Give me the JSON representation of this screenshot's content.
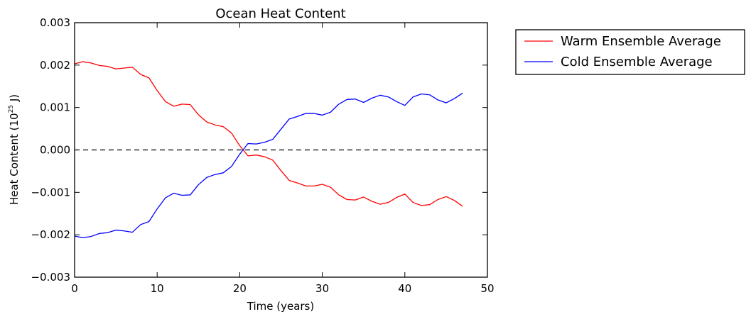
{
  "chart_data": {
    "type": "line",
    "title": "Ocean Heat Content",
    "xlabel": "Time (years)",
    "ylabel": "Heat Content (10",
    "ylabel_sup": "25",
    "ylabel_suffix": " J)",
    "xlim": [
      0,
      50
    ],
    "ylim": [
      -0.003,
      0.003
    ],
    "x_ticks": [
      0,
      10,
      20,
      30,
      40,
      50
    ],
    "x_tick_labels": [
      "0",
      "10",
      "20",
      "30",
      "40",
      "50"
    ],
    "y_ticks": [
      -0.003,
      -0.002,
      -0.001,
      0.0,
      0.001,
      0.002,
      0.003
    ],
    "y_tick_labels": [
      "−0.003",
      "−0.002",
      "−0.001",
      "0.000",
      "0.001",
      "0.002",
      "0.003"
    ],
    "grid": false,
    "legend_position": "outside-top-right",
    "reference_line": {
      "y": 0,
      "style": "dashed",
      "color": "#000000"
    },
    "x": [
      0,
      1,
      2,
      3,
      4,
      5,
      6,
      7,
      8,
      9,
      10,
      11,
      12,
      13,
      14,
      15,
      16,
      17,
      18,
      19,
      20,
      21,
      22,
      23,
      24,
      25,
      26,
      27,
      28,
      29,
      30,
      31,
      32,
      33,
      34,
      35,
      36,
      37,
      38,
      39,
      40,
      41,
      42,
      43,
      44,
      45,
      46,
      47
    ],
    "series": [
      {
        "name": "Warm Ensemble Average",
        "color": "#ff0000",
        "values": [
          0.00203,
          0.00208,
          0.00205,
          0.00199,
          0.00197,
          0.00191,
          0.00193,
          0.00195,
          0.00178,
          0.0017,
          0.0014,
          0.00114,
          0.00103,
          0.00108,
          0.00107,
          0.00083,
          0.00066,
          0.00059,
          0.00055,
          0.0004,
          0.0001,
          -0.00014,
          -0.00012,
          -0.00016,
          -0.00024,
          -0.00049,
          -0.00072,
          -0.00078,
          -0.00085,
          -0.00085,
          -0.00081,
          -0.00088,
          -0.00106,
          -0.00117,
          -0.00118,
          -0.00111,
          -0.00121,
          -0.00128,
          -0.00124,
          -0.00112,
          -0.00104,
          -0.00124,
          -0.00131,
          -0.00129,
          -0.00117,
          -0.0011,
          -0.00119,
          -0.00133
        ]
      },
      {
        "name": "Cold Ensemble Average",
        "color": "#0000ff",
        "values": [
          -0.00203,
          -0.00207,
          -0.00204,
          -0.00197,
          -0.00195,
          -0.00189,
          -0.00191,
          -0.00194,
          -0.00176,
          -0.00169,
          -0.00139,
          -0.00113,
          -0.00102,
          -0.00107,
          -0.00106,
          -0.00082,
          -0.00065,
          -0.00058,
          -0.00054,
          -0.00039,
          -0.0001,
          0.00015,
          0.00014,
          0.00018,
          0.00025,
          0.00049,
          0.00073,
          0.00079,
          0.00086,
          0.00086,
          0.00082,
          0.00089,
          0.00108,
          0.00119,
          0.0012,
          0.00112,
          0.00122,
          0.00129,
          0.00125,
          0.00114,
          0.00105,
          0.00125,
          0.00132,
          0.0013,
          0.00118,
          0.00111,
          0.00121,
          0.00134
        ]
      }
    ]
  }
}
